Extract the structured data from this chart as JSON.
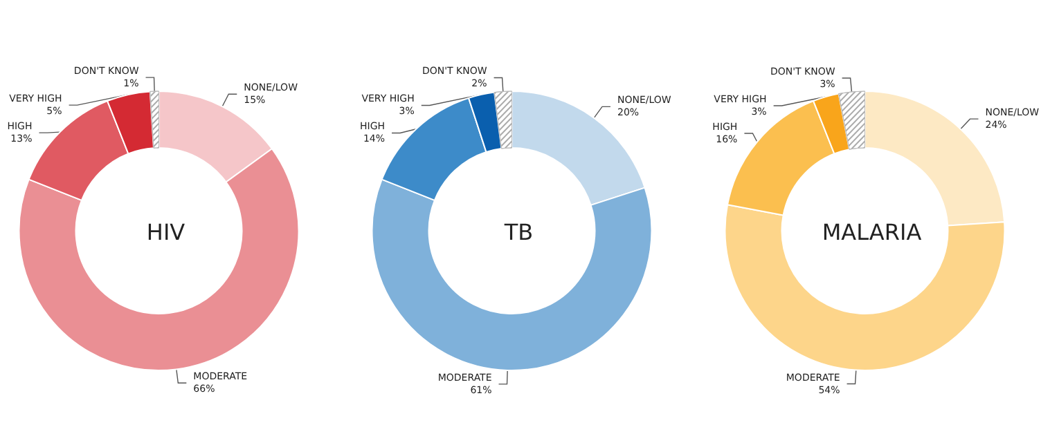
{
  "chart_data": [
    {
      "type": "donut",
      "title": "HIV",
      "categories": [
        "NONE/LOW",
        "MODERATE",
        "HIGH",
        "VERY HIGH",
        "DON'T KNOW"
      ],
      "values": [
        15,
        66,
        13,
        5,
        1
      ],
      "value_labels": [
        "15%",
        "66%",
        "13%",
        "5%",
        "1%"
      ],
      "colors": [
        "#f5c6c9",
        "#ea8f94",
        "#e05a62",
        "#d42a33",
        "#ffffff"
      ],
      "legend": false
    },
    {
      "type": "donut",
      "title": "TB",
      "categories": [
        "NONE/LOW",
        "MODERATE",
        "HIGH",
        "VERY HIGH",
        "DON'T KNOW"
      ],
      "values": [
        20,
        61,
        14,
        3,
        2
      ],
      "value_labels": [
        "20%",
        "61%",
        "14%",
        "3%",
        "2%"
      ],
      "colors": [
        "#c2d9ec",
        "#7fb1da",
        "#3d8bc9",
        "#0a5fae",
        "#ffffff"
      ],
      "legend": false
    },
    {
      "type": "donut",
      "title": "MALARIA",
      "categories": [
        "NONE/LOW",
        "MODERATE",
        "HIGH",
        "VERY HIGH",
        "DON'T KNOW"
      ],
      "values": [
        24,
        54,
        16,
        3,
        3
      ],
      "value_labels": [
        "24%",
        "54%",
        "16%",
        "3%",
        "3%"
      ],
      "colors": [
        "#fde9c4",
        "#fdd58a",
        "#fbbf4f",
        "#f9a51b",
        "#ffffff"
      ],
      "legend": false
    }
  ]
}
